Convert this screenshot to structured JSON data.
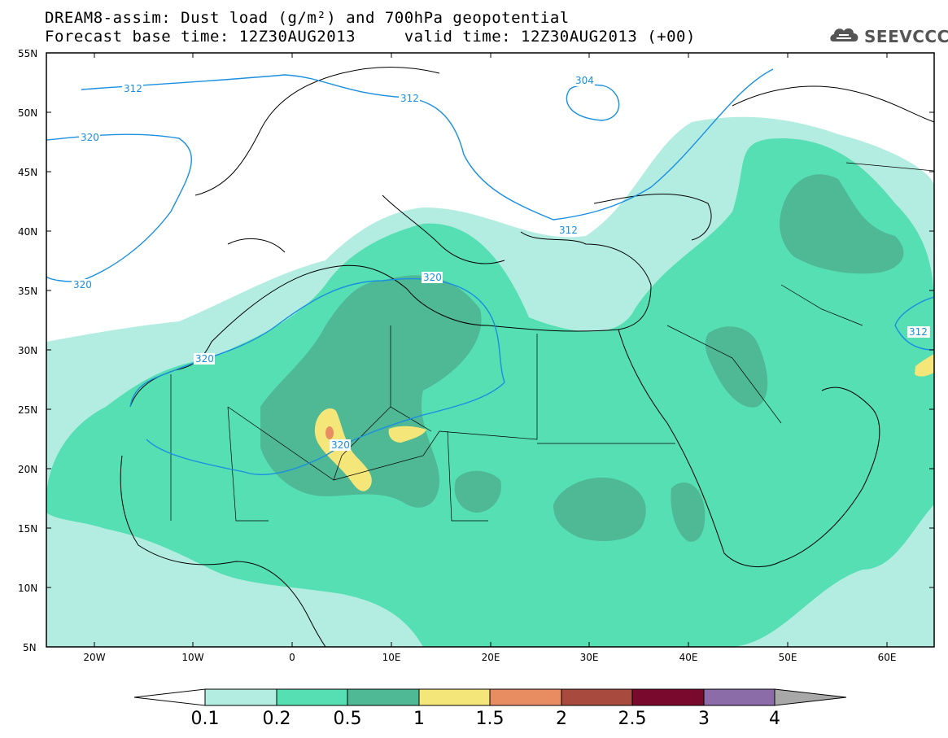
{
  "title": {
    "line1": "DREAM8-assim: Dust load (g/m²) and 700hPa geopotential",
    "line2": "Forecast base time: 12Z30AUG2013     valid time: 12Z30AUG2013 (+00)"
  },
  "logo": {
    "text": "SEEVCCC",
    "icon": "cloud-icon"
  },
  "axes": {
    "lat_labels": [
      "55N",
      "50N",
      "45N",
      "40N",
      "35N",
      "30N",
      "25N",
      "20N",
      "15N",
      "10N",
      "5N"
    ],
    "lon_labels": [
      "20W",
      "10W",
      "0",
      "10E",
      "20E",
      "30E",
      "40E",
      "50E",
      "60E"
    ]
  },
  "contours": {
    "color": "#1a8fe0",
    "labels": [
      "312",
      "312",
      "304",
      "320",
      "320",
      "320",
      "320",
      "312",
      "312",
      "320"
    ]
  },
  "colorbar": {
    "labels": [
      "0.1",
      "0.2",
      "0.5",
      "1",
      "1.5",
      "2",
      "2.5",
      "3",
      "4"
    ],
    "colors": [
      "#b3ede1",
      "#55dfb2",
      "#4fb894",
      "#f5e67a",
      "#e88d62",
      "#a84a3e",
      "#7a0a2d",
      "#8c6ca8",
      "#a8a8a8"
    ]
  },
  "dust_colors": {
    "level1": "#b3ede1",
    "level2": "#55dfb2",
    "level3": "#4fb894",
    "level4": "#f5e67a",
    "level5": "#e88d62"
  }
}
